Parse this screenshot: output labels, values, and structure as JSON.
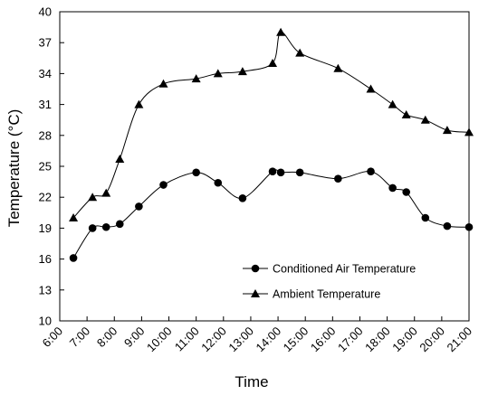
{
  "chart_data": {
    "type": "line",
    "xlabel": "Time",
    "ylabel": "Temperature (°C)",
    "ylim": [
      10,
      40
    ],
    "yticks": [
      10,
      13,
      16,
      19,
      22,
      25,
      28,
      31,
      34,
      37,
      40
    ],
    "xlim": [
      6,
      21
    ],
    "xticks": [
      "6:00",
      "7:00",
      "8:00",
      "9:00",
      "10:00",
      "11:00",
      "12:00",
      "13:00",
      "14:00",
      "15:00",
      "16:00",
      "17:00",
      "18:00",
      "19:00",
      "20:00",
      "21:00"
    ],
    "legend_position": "bottom-right",
    "series": [
      {
        "name": "Conditioned Air Temperature",
        "marker": "circle",
        "color": "#000000",
        "x": [
          6.5,
          7.2,
          7.7,
          8.2,
          8.9,
          9.8,
          11.0,
          11.8,
          12.7,
          13.8,
          14.1,
          14.8,
          16.2,
          17.4,
          18.2,
          18.7,
          19.4,
          20.2,
          21.0
        ],
        "y": [
          16.1,
          19.0,
          19.1,
          19.4,
          21.1,
          23.2,
          24.4,
          23.4,
          21.9,
          24.5,
          24.4,
          24.4,
          23.8,
          24.5,
          22.9,
          22.5,
          20.0,
          19.2,
          19.1
        ]
      },
      {
        "name": "Ambient Temperature",
        "marker": "triangle",
        "color": "#000000",
        "x": [
          6.5,
          7.2,
          7.7,
          8.2,
          8.9,
          9.8,
          11.0,
          11.8,
          12.7,
          13.8,
          14.1,
          14.8,
          16.2,
          17.4,
          18.2,
          18.7,
          19.4,
          20.2,
          21.0
        ],
        "y": [
          20.0,
          22.0,
          22.4,
          25.7,
          31.0,
          33.0,
          33.5,
          34.0,
          34.2,
          35.0,
          38.0,
          36.0,
          34.5,
          32.5,
          31.0,
          30.0,
          29.5,
          28.5,
          28.3
        ]
      }
    ]
  }
}
